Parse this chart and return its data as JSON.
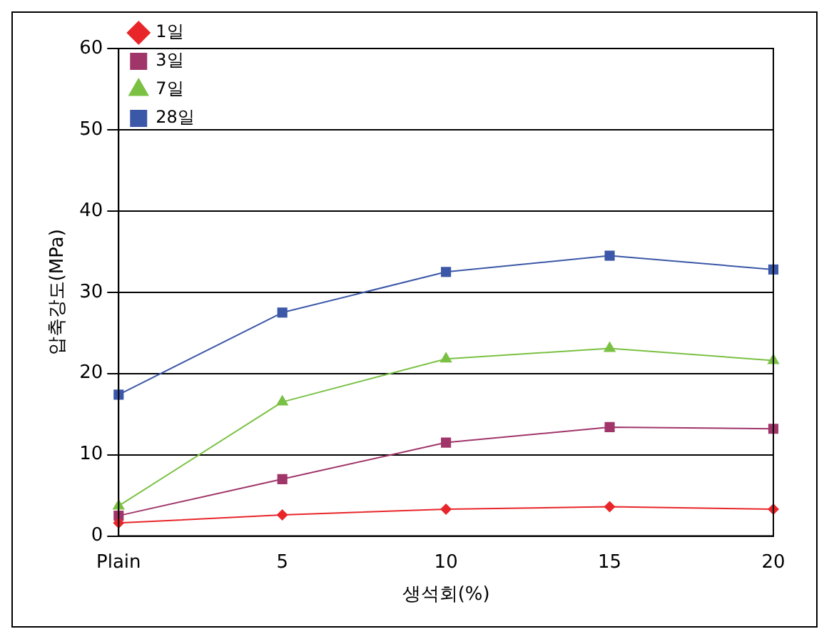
{
  "chart_data": {
    "type": "line",
    "xlabel": "생석회(%)",
    "ylabel": "압축강도(MPa)",
    "categories": [
      "Plain",
      "5",
      "10",
      "15",
      "20"
    ],
    "series": [
      {
        "name": "1일",
        "color": "#e8262a",
        "marker": "diamond",
        "values": [
          1.6,
          2.6,
          3.3,
          3.6,
          3.3
        ]
      },
      {
        "name": "3일",
        "color": "#a0356a",
        "marker": "square",
        "values": [
          2.5,
          7.0,
          11.5,
          13.4,
          13.2
        ]
      },
      {
        "name": "7일",
        "color": "#7ac143",
        "marker": "triangle",
        "values": [
          3.7,
          16.5,
          21.8,
          23.1,
          21.6
        ]
      },
      {
        "name": "28일",
        "color": "#3b57a7",
        "marker": "square",
        "values": [
          17.4,
          27.5,
          32.5,
          34.5,
          32.8
        ]
      }
    ],
    "ylim": [
      0,
      60
    ],
    "yticks": [
      0,
      10,
      20,
      30,
      40,
      50,
      60
    ],
    "grid": "y",
    "legend": "top left",
    "line_style": "solid"
  }
}
